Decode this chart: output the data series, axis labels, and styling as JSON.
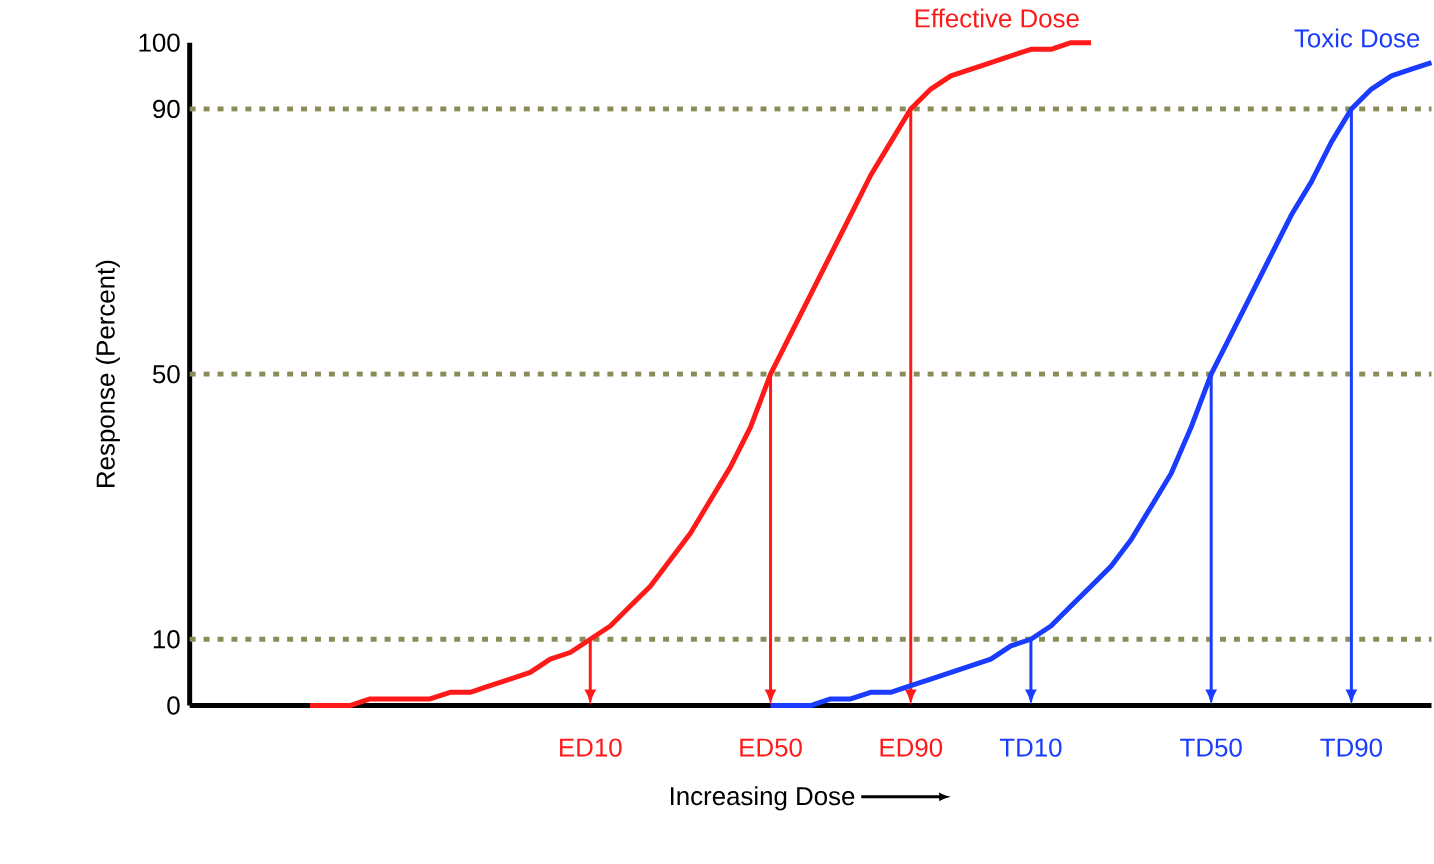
{
  "chart_data": {
    "type": "line",
    "xlabel": "Increasing Dose",
    "ylabel": "Response (Percent)",
    "marker": "none",
    "line_style": "solid",
    "grid": false,
    "categories": [
      null,
      null,
      null,
      null,
      null,
      null,
      null,
      null,
      null,
      null,
      null,
      null,
      null,
      null,
      null,
      null,
      null,
      null,
      null,
      null,
      "ED10",
      null,
      null,
      null,
      null,
      null,
      null,
      null,
      null,
      "ED50",
      null,
      null,
      null,
      null,
      null,
      null,
      "ED90",
      null,
      null,
      null,
      null,
      null,
      "TD10",
      null,
      null,
      null,
      null,
      null,
      null,
      null,
      null,
      "TD50",
      null,
      null,
      null,
      null,
      null,
      null,
      "TD90",
      null,
      null,
      null,
      null
    ],
    "ylim": [
      0,
      100
    ],
    "yticks": [
      0,
      10,
      50,
      90,
      100
    ],
    "series": [
      {
        "name": "Effective Dose",
        "color": "#ff1a1a",
        "values": [
          null,
          null,
          null,
          null,
          null,
          null,
          0,
          0,
          0,
          1,
          1,
          1,
          1,
          2,
          2,
          3,
          4,
          5,
          7,
          8,
          10,
          12,
          15,
          18,
          22,
          26,
          31,
          36,
          42,
          50,
          56,
          62,
          68,
          74,
          80,
          85,
          90,
          93,
          95,
          96,
          97,
          98,
          99,
          99,
          100,
          100,
          null,
          null,
          null,
          null,
          null,
          null,
          null,
          null,
          null,
          null,
          null,
          null,
          null,
          null,
          null,
          null,
          null
        ]
      },
      {
        "name": "Toxic Dose",
        "color": "#1a3cff",
        "values": [
          null,
          null,
          null,
          null,
          null,
          null,
          null,
          null,
          null,
          null,
          null,
          null,
          null,
          null,
          null,
          null,
          null,
          null,
          null,
          null,
          null,
          null,
          null,
          null,
          null,
          null,
          null,
          null,
          null,
          0,
          0,
          0,
          1,
          1,
          2,
          2,
          3,
          4,
          5,
          6,
          7,
          9,
          10,
          12,
          15,
          18,
          21,
          25,
          30,
          35,
          42,
          50,
          56,
          62,
          68,
          74,
          79,
          85,
          90,
          93,
          95,
          96,
          97
        ]
      }
    ],
    "ref_lines": [
      {
        "axis": "y",
        "value": 10,
        "color": "#8c8c5a",
        "line_style": "dotted"
      },
      {
        "axis": "y",
        "value": 50,
        "color": "#8c8c5a",
        "line_style": "dotted"
      },
      {
        "axis": "y",
        "value": 90,
        "color": "#8c8c5a",
        "line_style": "dotted"
      }
    ]
  }
}
